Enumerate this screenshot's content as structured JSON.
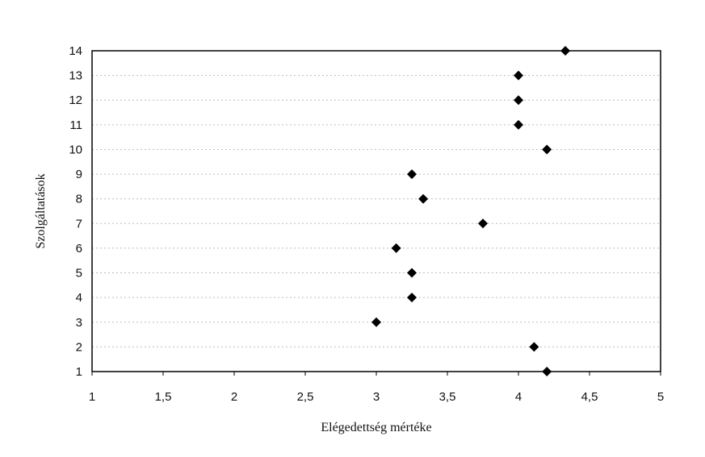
{
  "chart_data": {
    "type": "scatter",
    "title": "",
    "xlabel": "Elégedettség mértéke",
    "ylabel": "Szolgáltatások",
    "xlim": [
      1,
      5
    ],
    "ylim": [
      1,
      14
    ],
    "x_ticks": [
      "1",
      "1,5",
      "2",
      "2,5",
      "3",
      "3,5",
      "4",
      "4,5",
      "5"
    ],
    "x_tick_values": [
      1,
      1.5,
      2,
      2.5,
      3,
      3.5,
      4,
      4.5,
      5
    ],
    "y_ticks": [
      1,
      2,
      3,
      4,
      5,
      6,
      7,
      8,
      9,
      10,
      11,
      12,
      13,
      14
    ],
    "grid": "horizontal",
    "marker": "diamond",
    "series": [
      {
        "points": [
          {
            "x": 4.2,
            "y": 1
          },
          {
            "x": 4.11,
            "y": 2
          },
          {
            "x": 3.0,
            "y": 3
          },
          {
            "x": 3.25,
            "y": 4
          },
          {
            "x": 3.25,
            "y": 5
          },
          {
            "x": 3.14,
            "y": 6
          },
          {
            "x": 3.75,
            "y": 7
          },
          {
            "x": 3.33,
            "y": 8
          },
          {
            "x": 3.25,
            "y": 9
          },
          {
            "x": 4.2,
            "y": 10
          },
          {
            "x": 4.0,
            "y": 11
          },
          {
            "x": 4.0,
            "y": 12
          },
          {
            "x": 4.0,
            "y": 13
          },
          {
            "x": 4.33,
            "y": 14
          }
        ]
      }
    ]
  }
}
